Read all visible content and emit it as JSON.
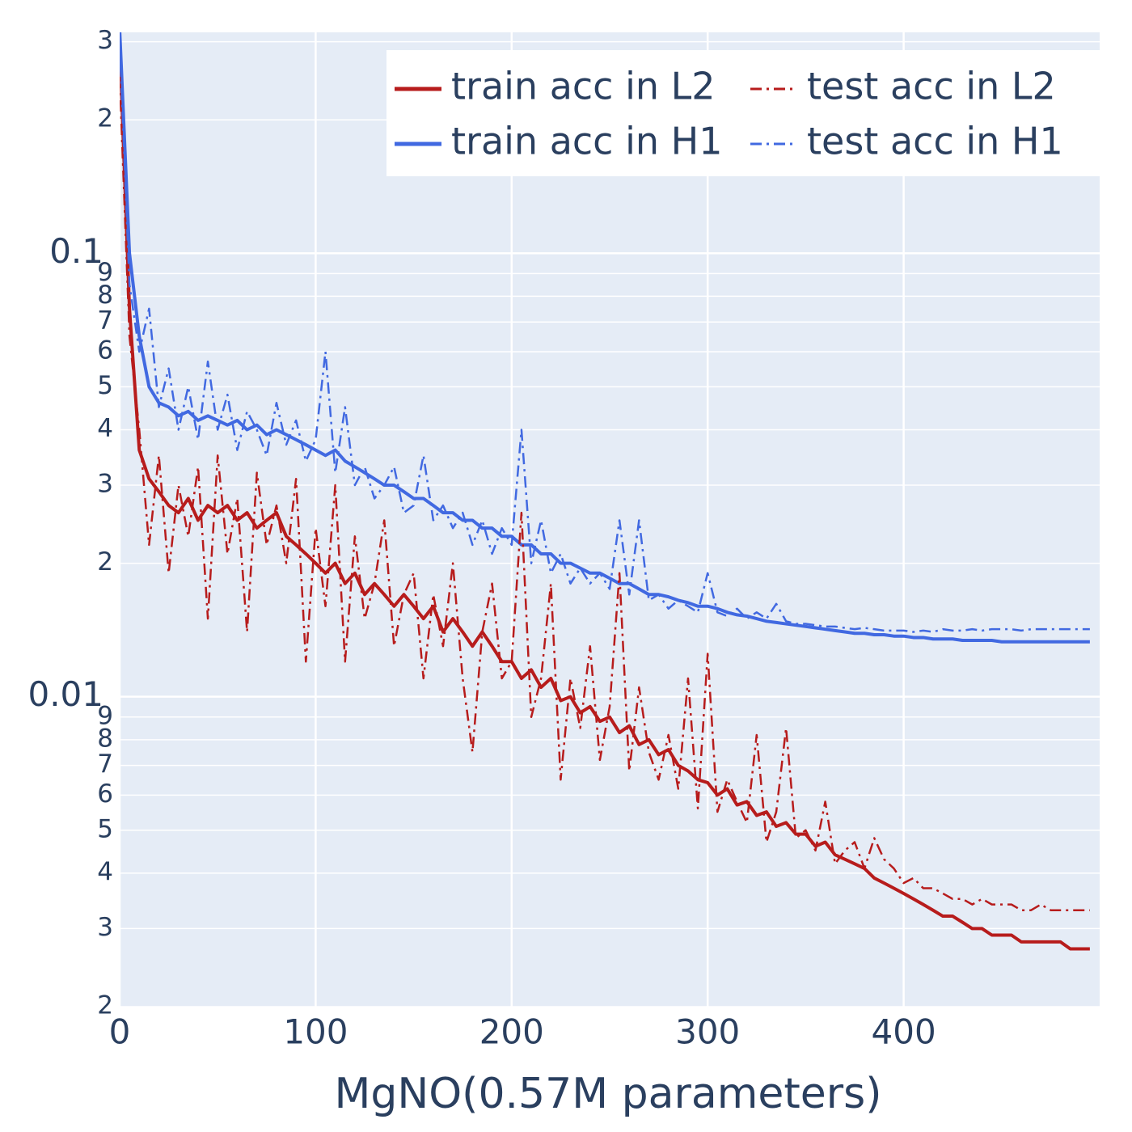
{
  "chart_data": {
    "type": "line",
    "x_label": "MgNO(0.57M parameters)",
    "x": [
      0,
      5,
      10,
      15,
      20,
      25,
      30,
      35,
      40,
      45,
      50,
      55,
      60,
      65,
      70,
      75,
      80,
      85,
      90,
      95,
      100,
      105,
      110,
      115,
      120,
      125,
      130,
      135,
      140,
      145,
      150,
      155,
      160,
      165,
      170,
      175,
      180,
      185,
      190,
      195,
      200,
      205,
      210,
      215,
      220,
      225,
      230,
      235,
      240,
      245,
      250,
      255,
      260,
      265,
      270,
      275,
      280,
      285,
      290,
      295,
      300,
      305,
      310,
      315,
      320,
      325,
      330,
      335,
      340,
      345,
      350,
      355,
      360,
      365,
      370,
      375,
      380,
      385,
      390,
      395,
      400,
      405,
      410,
      415,
      420,
      425,
      430,
      435,
      440,
      445,
      450,
      455,
      460,
      465,
      470,
      475,
      480,
      485,
      490,
      495
    ],
    "series": [
      {
        "name": "train acc in L2",
        "color": "#b71c1c",
        "dash": "solid",
        "values": [
          0.3,
          0.075,
          0.036,
          0.031,
          0.029,
          0.027,
          0.026,
          0.028,
          0.025,
          0.027,
          0.026,
          0.027,
          0.025,
          0.026,
          0.024,
          0.025,
          0.026,
          0.023,
          0.022,
          0.021,
          0.02,
          0.019,
          0.02,
          0.018,
          0.019,
          0.017,
          0.018,
          0.017,
          0.016,
          0.017,
          0.016,
          0.015,
          0.016,
          0.014,
          0.015,
          0.014,
          0.013,
          0.014,
          0.013,
          0.012,
          0.012,
          0.011,
          0.0115,
          0.0105,
          0.011,
          0.0098,
          0.01,
          0.0092,
          0.0095,
          0.0088,
          0.009,
          0.0083,
          0.0086,
          0.0078,
          0.008,
          0.0074,
          0.0076,
          0.007,
          0.0068,
          0.0065,
          0.0064,
          0.006,
          0.0062,
          0.0057,
          0.0058,
          0.0054,
          0.0055,
          0.0051,
          0.0052,
          0.0049,
          0.0049,
          0.0046,
          0.0047,
          0.0044,
          0.0043,
          0.0042,
          0.0041,
          0.0039,
          0.0038,
          0.0037,
          0.0036,
          0.0035,
          0.0034,
          0.0033,
          0.0032,
          0.0032,
          0.0031,
          0.003,
          0.003,
          0.0029,
          0.0029,
          0.0029,
          0.0028,
          0.0028,
          0.0028,
          0.0028,
          0.0028,
          0.0027,
          0.0027,
          0.0027
        ]
      },
      {
        "name": "train acc in H1",
        "color": "#4169e1",
        "dash": "solid",
        "values": [
          0.32,
          0.1,
          0.065,
          0.05,
          0.046,
          0.045,
          0.043,
          0.044,
          0.042,
          0.043,
          0.042,
          0.041,
          0.042,
          0.04,
          0.041,
          0.039,
          0.04,
          0.039,
          0.038,
          0.037,
          0.036,
          0.035,
          0.036,
          0.034,
          0.033,
          0.032,
          0.031,
          0.03,
          0.03,
          0.029,
          0.028,
          0.028,
          0.027,
          0.026,
          0.026,
          0.025,
          0.025,
          0.024,
          0.024,
          0.023,
          0.023,
          0.022,
          0.022,
          0.021,
          0.021,
          0.02,
          0.02,
          0.0195,
          0.019,
          0.019,
          0.0185,
          0.018,
          0.018,
          0.0175,
          0.017,
          0.017,
          0.0168,
          0.0165,
          0.0163,
          0.016,
          0.016,
          0.0158,
          0.0155,
          0.0153,
          0.0152,
          0.015,
          0.0148,
          0.0147,
          0.0146,
          0.0145,
          0.0144,
          0.0143,
          0.0142,
          0.0141,
          0.014,
          0.0139,
          0.0139,
          0.0138,
          0.0138,
          0.0137,
          0.0137,
          0.0136,
          0.0136,
          0.0135,
          0.0135,
          0.0135,
          0.0134,
          0.0134,
          0.0134,
          0.0134,
          0.0133,
          0.0133,
          0.0133,
          0.0133,
          0.0133,
          0.0133,
          0.0133,
          0.0133,
          0.0133,
          0.0133
        ]
      },
      {
        "name": "test acc in L2",
        "color": "#b71c1c",
        "dash": "dashdot",
        "values": [
          0.25,
          0.065,
          0.04,
          0.022,
          0.035,
          0.019,
          0.03,
          0.023,
          0.033,
          0.015,
          0.035,
          0.021,
          0.028,
          0.014,
          0.032,
          0.022,
          0.027,
          0.02,
          0.031,
          0.012,
          0.024,
          0.016,
          0.03,
          0.012,
          0.023,
          0.015,
          0.018,
          0.025,
          0.013,
          0.017,
          0.019,
          0.011,
          0.017,
          0.013,
          0.02,
          0.011,
          0.0075,
          0.014,
          0.018,
          0.011,
          0.012,
          0.026,
          0.009,
          0.011,
          0.018,
          0.0065,
          0.011,
          0.0085,
          0.013,
          0.0072,
          0.0095,
          0.019,
          0.0068,
          0.0105,
          0.0075,
          0.0065,
          0.0082,
          0.0062,
          0.011,
          0.0056,
          0.0125,
          0.0055,
          0.0065,
          0.0058,
          0.0052,
          0.0082,
          0.0047,
          0.0055,
          0.0085,
          0.0048,
          0.005,
          0.0045,
          0.0058,
          0.0042,
          0.0045,
          0.0047,
          0.0041,
          0.0048,
          0.0043,
          0.0041,
          0.0038,
          0.0039,
          0.0037,
          0.0037,
          0.0036,
          0.0035,
          0.0035,
          0.0034,
          0.0035,
          0.0034,
          0.0034,
          0.0034,
          0.0033,
          0.0033,
          0.0034,
          0.0033,
          0.0033,
          0.0033,
          0.0033,
          0.0033
        ]
      },
      {
        "name": "test acc in H1",
        "color": "#4169e1",
        "dash": "dashdot",
        "values": [
          0.3,
          0.085,
          0.06,
          0.075,
          0.045,
          0.055,
          0.04,
          0.05,
          0.038,
          0.057,
          0.04,
          0.048,
          0.036,
          0.044,
          0.04,
          0.035,
          0.046,
          0.037,
          0.042,
          0.034,
          0.038,
          0.06,
          0.032,
          0.045,
          0.03,
          0.033,
          0.028,
          0.03,
          0.033,
          0.026,
          0.027,
          0.035,
          0.025,
          0.027,
          0.024,
          0.026,
          0.022,
          0.025,
          0.021,
          0.024,
          0.022,
          0.04,
          0.02,
          0.025,
          0.019,
          0.021,
          0.018,
          0.0195,
          0.018,
          0.019,
          0.0175,
          0.025,
          0.017,
          0.025,
          0.0165,
          0.017,
          0.0158,
          0.0165,
          0.016,
          0.0155,
          0.019,
          0.0155,
          0.0152,
          0.0158,
          0.015,
          0.0155,
          0.015,
          0.0162,
          0.0148,
          0.0146,
          0.0146,
          0.0145,
          0.0144,
          0.0144,
          0.0143,
          0.0142,
          0.0143,
          0.0142,
          0.0141,
          0.0141,
          0.0141,
          0.014,
          0.0141,
          0.014,
          0.0142,
          0.0141,
          0.0141,
          0.0142,
          0.0141,
          0.0142,
          0.0142,
          0.0142,
          0.0141,
          0.0142,
          0.0142,
          0.0142,
          0.0142,
          0.0142,
          0.0142,
          0.0142
        ]
      }
    ],
    "xlim": [
      0,
      500
    ],
    "xticks": [
      0,
      100,
      200,
      300,
      400
    ],
    "ylim": [
      0.002,
      0.315
    ],
    "y_scale": "log",
    "yticks": [
      {
        "value": 0.3,
        "label": "3"
      },
      {
        "value": 0.2,
        "label": "2"
      },
      0.1,
      {
        "value": 0.09,
        "label": "9"
      },
      {
        "value": 0.08,
        "label": "8"
      },
      {
        "value": 0.07,
        "label": "7"
      },
      {
        "value": 0.06,
        "label": "6"
      },
      {
        "value": 0.05,
        "label": "5"
      },
      {
        "value": 0.04,
        "label": "4"
      },
      {
        "value": 0.03,
        "label": "3"
      },
      {
        "value": 0.02,
        "label": "2"
      },
      0.01,
      {
        "value": 0.009,
        "label": "9"
      },
      {
        "value": 0.008,
        "label": "8"
      },
      {
        "value": 0.007,
        "label": "7"
      },
      {
        "value": 0.006,
        "label": "6"
      },
      {
        "value": 0.005,
        "label": "5"
      },
      {
        "value": 0.004,
        "label": "4"
      },
      {
        "value": 0.003,
        "label": "3"
      },
      {
        "value": 0.002,
        "label": "2"
      }
    ],
    "grid": true,
    "legend_position": "top-right"
  }
}
